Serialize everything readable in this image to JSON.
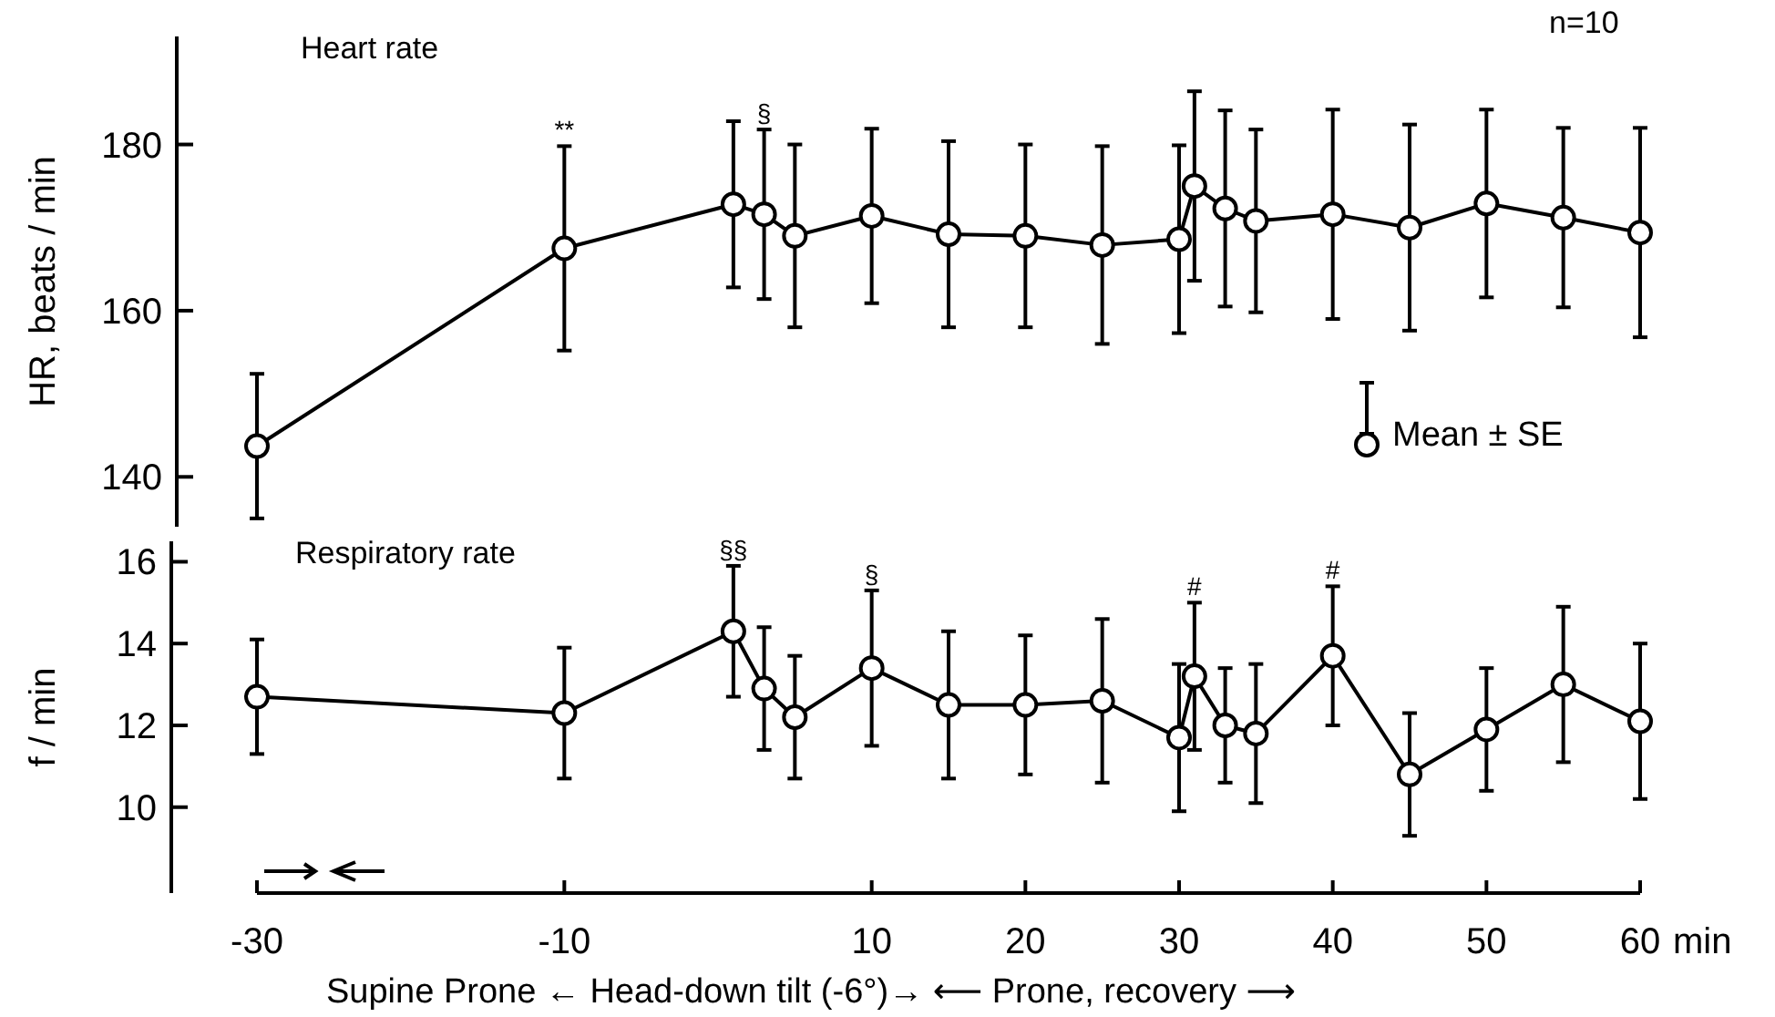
{
  "chart_data": [
    {
      "type": "line",
      "title": "Heart rate",
      "ylabel": "HR, beats / min",
      "marker": "circle",
      "legend": "right",
      "tick_labels": "y",
      "x": [
        -30,
        -10,
        1,
        3,
        5,
        10,
        15,
        20,
        25,
        30,
        31,
        33,
        35,
        40,
        45,
        50,
        55,
        60
      ],
      "series": [
        {
          "name": "Mean ± SE",
          "color": "#000000",
          "values": [
            143.7,
            167.5,
            172.8,
            171.6,
            169,
            171.4,
            169.2,
            169,
            167.9,
            168.6,
            175,
            172.3,
            170.8,
            171.6,
            170,
            172.9,
            171.2,
            169.4
          ],
          "errors": [
            8.7,
            12.3,
            10,
            10.2,
            11,
            10.5,
            11.2,
            11,
            11.9,
            11.3,
            11.4,
            11.8,
            11,
            12.6,
            12.4,
            11.3,
            10.8,
            12.6
          ]
        }
      ],
      "xlim": [
        -30,
        60
      ],
      "ylim": [
        134,
        193
      ],
      "yticks": [
        140,
        160,
        180
      ],
      "annotations": [
        "n=10",
        {
          "text": "**",
          "x": -10,
          "y": 179.8
        },
        {
          "text": "§",
          "x": 3,
          "y": 181.8
        }
      ]
    },
    {
      "type": "line",
      "title": "Respiratory rate",
      "ylabel": "f / min",
      "xlabel": "min",
      "marker": "circle",
      "x": [
        -30,
        -10,
        1,
        3,
        5,
        10,
        15,
        20,
        25,
        30,
        31,
        33,
        35,
        40,
        45,
        50,
        55,
        60
      ],
      "series": [
        {
          "color": "#000000",
          "values": [
            12.7,
            12.3,
            14.3,
            12.9,
            12.2,
            13.4,
            12.5,
            12.5,
            12.6,
            11.7,
            13.2,
            12,
            11.8,
            13.7,
            10.8,
            11.9,
            13,
            12.1
          ],
          "errors": [
            1.4,
            1.6,
            1.6,
            1.5,
            1.5,
            1.9,
            1.8,
            1.7,
            2,
            1.8,
            1.8,
            1.4,
            1.7,
            1.7,
            1.5,
            1.5,
            1.9,
            1.9
          ]
        }
      ],
      "xlim": [
        -30,
        60
      ],
      "xticks": [
        -30,
        -10,
        10,
        20,
        30,
        40,
        50,
        60
      ],
      "ylim": [
        7.9,
        16.5
      ],
      "yticks": [
        10,
        12,
        14,
        16
      ],
      "annotations": [
        "Supine Prone ← Head-down tilt (-6°)→ ⟵ Prone, recovery ⟶",
        {
          "text": "§§",
          "x": 1,
          "y": 15.9
        },
        {
          "text": "§",
          "x": 10,
          "y": 15.3
        },
        {
          "text": "#",
          "x": 31,
          "y": 15
        },
        {
          "text": "#",
          "x": 40,
          "y": 15.4
        }
      ]
    }
  ]
}
